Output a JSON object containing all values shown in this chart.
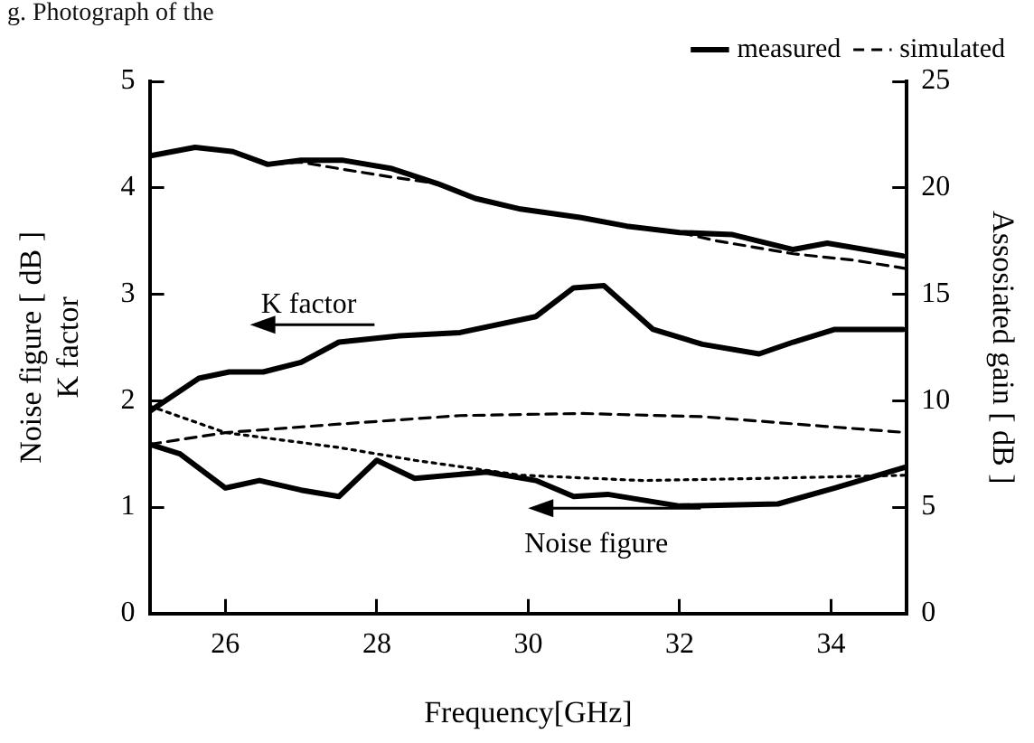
{
  "chart_data": {
    "type": "line",
    "xlabel": "Frequency[GHz]",
    "ylabel": "Noise figure [ dB ]\nK factor",
    "y2label": "Assosiated gain [ dB ]",
    "xlim": [
      25,
      35
    ],
    "xticks": [
      26,
      28,
      30,
      32,
      34
    ],
    "ylim": [
      0,
      5
    ],
    "yticks": [
      0,
      1,
      2,
      3,
      4,
      5
    ],
    "y2lim": [
      0,
      25
    ],
    "y2ticks": [
      0,
      5,
      10,
      15,
      20,
      25
    ],
    "grid": false,
    "legend": "top right",
    "marker": "none",
    "annotations": [
      "g. Photograph of the",
      "K factor",
      "Noise figure"
    ],
    "series": [
      {
        "name": "measured",
        "color": "#000000",
        "line_style": "solid",
        "axis": "y2",
        "x": [
          25.0,
          25.6,
          26.1,
          26.56,
          27.0,
          27.54,
          28.2,
          28.8,
          29.3,
          29.9,
          30.7,
          31.3,
          32.0,
          32.7,
          33.5,
          33.95,
          34.95
        ],
        "values": [
          21.5,
          21.9,
          21.7,
          21.1,
          21.3,
          21.3,
          20.9,
          20.2,
          19.5,
          19.0,
          18.6,
          18.2,
          17.9,
          17.8,
          17.1,
          17.4,
          16.8
        ]
      },
      {
        "name": "simulated",
        "color": "#000000",
        "line_style": "dashed",
        "axis": "y2",
        "x": [
          25.0,
          25.6,
          26.1,
          26.56,
          27.0,
          27.5,
          28.2,
          28.8,
          29.3,
          29.9,
          30.7,
          31.3,
          32.0,
          32.5,
          33.5,
          34.3,
          35.0
        ],
        "values": [
          21.5,
          21.9,
          21.7,
          21.1,
          21.2,
          20.9,
          20.5,
          20.2,
          19.5,
          19.0,
          18.6,
          18.2,
          17.9,
          17.5,
          16.9,
          16.6,
          16.2
        ]
      },
      {
        "color": "#000000",
        "line_style": "solid",
        "x": [
          25.0,
          25.65,
          26.05,
          26.5,
          27.0,
          27.5,
          28.3,
          29.1,
          30.1,
          30.6,
          31.0,
          31.65,
          32.3,
          33.05,
          33.5,
          34.05,
          34.95
        ],
        "values": [
          1.9,
          2.21,
          2.27,
          2.27,
          2.36,
          2.55,
          2.61,
          2.64,
          2.79,
          3.06,
          3.08,
          2.67,
          2.53,
          2.44,
          2.55,
          2.67,
          2.67
        ]
      },
      {
        "color": "#000000",
        "line_style": "dashed",
        "x": [
          25.0,
          26.0,
          27.5,
          29.1,
          30.7,
          32.3,
          33.9,
          35.0
        ],
        "values": [
          1.59,
          1.7,
          1.78,
          1.86,
          1.88,
          1.85,
          1.76,
          1.7
        ]
      },
      {
        "color": "#000000",
        "line_style": "solid",
        "x": [
          25.0,
          25.4,
          26.0,
          26.45,
          27.0,
          27.5,
          28.0,
          28.5,
          29.45,
          30.1,
          30.6,
          31.05,
          32.0,
          33.3,
          34.05,
          35.0
        ],
        "values": [
          1.59,
          1.5,
          1.18,
          1.25,
          1.16,
          1.1,
          1.44,
          1.27,
          1.33,
          1.25,
          1.1,
          1.12,
          1.01,
          1.03,
          1.18,
          1.38
        ]
      },
      {
        "color": "#000000",
        "line_style": "dotted",
        "x": [
          25.0,
          26.0,
          27.5,
          28.5,
          29.9,
          31.5,
          33.1,
          35.0
        ],
        "values": [
          1.95,
          1.7,
          1.56,
          1.44,
          1.3,
          1.25,
          1.27,
          1.3
        ]
      }
    ]
  }
}
